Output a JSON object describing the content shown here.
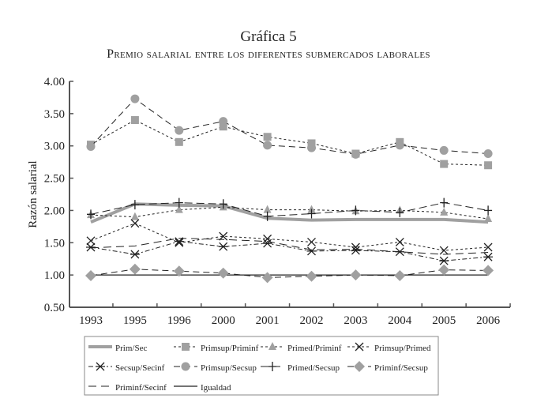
{
  "title": "Gráfica 5",
  "subtitle": "Premio salarial entre los diferentes submercados laborales",
  "chart_data": {
    "type": "line",
    "title": "Gráfica 5",
    "subtitle": "Premio salarial entre los diferentes submercados laborales",
    "xlabel": "",
    "ylabel": "Razón salarial",
    "categories": [
      "1993",
      "1995",
      "1996",
      "2000",
      "2001",
      "2002",
      "2003",
      "2004",
      "2005",
      "2006"
    ],
    "ylim": [
      0.5,
      4.0
    ],
    "yticks": [
      "0.50",
      "1.00",
      "1.50",
      "2.00",
      "2.50",
      "3.00",
      "3.50",
      "4.00"
    ],
    "grid": false,
    "legend": "bottom",
    "series": [
      {
        "name": "Prim/Sec",
        "style": "thick-gray",
        "values": [
          1.82,
          2.1,
          2.08,
          2.07,
          1.88,
          1.85,
          1.86,
          1.86,
          1.86,
          1.82
        ]
      },
      {
        "name": "Primsup/Priminf",
        "style": "dotted-square",
        "values": [
          3.02,
          3.4,
          3.06,
          3.3,
          3.14,
          3.04,
          2.88,
          3.06,
          2.72,
          2.7
        ]
      },
      {
        "name": "Primed/Priminf",
        "style": "dotted-triangle",
        "values": [
          1.93,
          1.9,
          2.01,
          2.05,
          2.01,
          2.01,
          1.99,
          2.0,
          1.97,
          1.87
        ]
      },
      {
        "name": "Primsup/Primed",
        "style": "dotted-x",
        "values": [
          1.53,
          1.8,
          1.5,
          1.6,
          1.56,
          1.51,
          1.43,
          1.51,
          1.38,
          1.43
        ]
      },
      {
        "name": "Secsup/Secinf",
        "style": "dashdot-star",
        "values": [
          1.43,
          1.32,
          1.52,
          1.44,
          1.49,
          1.37,
          1.38,
          1.36,
          1.22,
          1.28
        ]
      },
      {
        "name": "Primsup/Secsup",
        "style": "dashed-circle",
        "values": [
          2.99,
          3.73,
          3.24,
          3.38,
          3.01,
          2.97,
          2.87,
          3.01,
          2.93,
          2.88
        ]
      },
      {
        "name": "Primed/Secsup",
        "style": "dashed-plus",
        "values": [
          1.94,
          2.09,
          2.12,
          2.1,
          1.91,
          1.95,
          2.0,
          1.97,
          2.12,
          2.0
        ]
      },
      {
        "name": "Priminf/Secsup",
        "style": "dashed-diamond",
        "values": [
          0.99,
          1.09,
          1.06,
          1.03,
          0.96,
          0.98,
          1.0,
          0.99,
          1.08,
          1.07
        ]
      },
      {
        "name": "Priminf/Secinf",
        "style": "dashed",
        "values": [
          1.42,
          1.45,
          1.57,
          1.55,
          1.52,
          1.39,
          1.4,
          1.36,
          1.32,
          1.35
        ]
      },
      {
        "name": "Igualdad",
        "style": "solid",
        "values": [
          1,
          1,
          1,
          1,
          1,
          1,
          1,
          1,
          1,
          1
        ]
      }
    ],
    "colors": {
      "gray": "#a0a0a0",
      "black": "#222222"
    }
  }
}
